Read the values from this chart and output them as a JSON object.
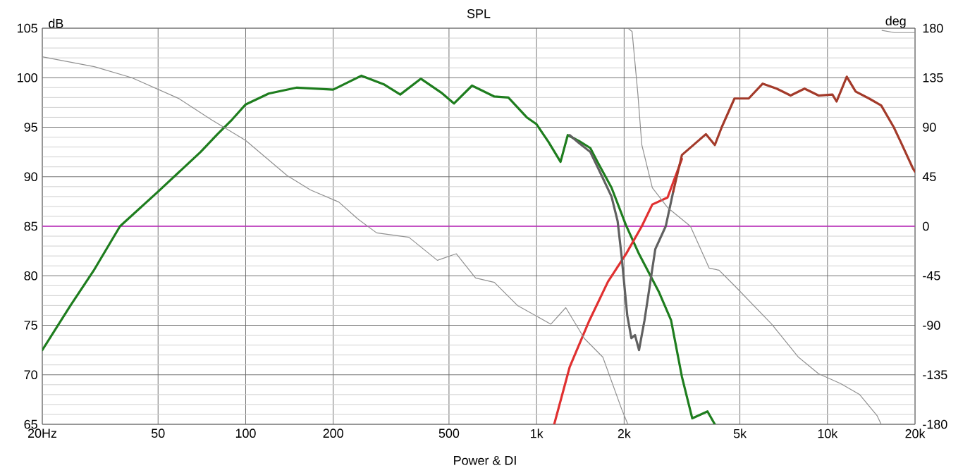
{
  "chart_data": {
    "type": "line",
    "title": "SPL",
    "ylabel": "dB",
    "y2label": "deg",
    "annotations": [
      "Power & DI"
    ],
    "xlim": [
      20,
      20000
    ],
    "ylim": [
      65,
      105
    ],
    "y2lim": [
      -180,
      180
    ],
    "log": "x",
    "grid": true,
    "xticks": [
      {
        "value": 20,
        "label": "20Hz"
      },
      50,
      100,
      200,
      500,
      {
        "value": 1000,
        "label": "1k"
      },
      {
        "value": 2000,
        "label": "2k"
      },
      {
        "value": 5000,
        "label": "5k"
      },
      {
        "value": 10000,
        "label": "10k"
      },
      {
        "value": 20000,
        "label": "20k"
      }
    ],
    "yticks": [
      65,
      70,
      75,
      80,
      85,
      90,
      95,
      100,
      105
    ],
    "y2ticks": [
      -180,
      -135,
      -90,
      -45,
      0,
      45,
      90,
      135,
      180
    ],
    "ref_lines": [
      {
        "axis": "y",
        "value": 85,
        "color": "#c832c8"
      }
    ],
    "series": [
      {
        "color": "#909090",
        "axis": "y2",
        "x": [
          20,
          30.2,
          40.6,
          59,
          76,
          100,
          139,
          167,
          209,
          242,
          282,
          364,
          456,
          530,
          617,
          716,
          860,
          1120,
          1260,
          1460,
          1690,
          1960,
          2060,
          2061,
          2062,
          2130,
          2230,
          2300,
          2500,
          2820,
          3380,
          3920,
          4240,
          4790,
          6430,
          7950,
          9320,
          11100,
          12900,
          14800,
          15300,
          15301,
          15400,
          17000,
          20000
        ],
        "values": [
          154,
          145,
          135,
          116,
          97,
          78,
          46,
          33,
          22,
          7,
          -6,
          -10,
          -31,
          -25,
          -47,
          -51,
          -72,
          -89,
          -74,
          -102,
          -119,
          -166,
          -180,
          null,
          180,
          177,
          120,
          74,
          35,
          17,
          0,
          -38,
          -40,
          -54,
          -89,
          -119,
          -134,
          -143,
          -153,
          -172,
          -180,
          null,
          178,
          176,
          176
        ]
      },
      {
        "color": "#1e7d1e",
        "x": [
          20,
          25,
          30,
          37,
          50,
          70,
          80,
          90,
          100,
          120,
          150,
          200,
          250,
          300,
          340,
          400,
          470,
          520,
          600,
          716,
          800,
          925,
          1000,
          1100,
          1209,
          1280,
          1400,
          1530,
          1620,
          1810,
          2030,
          2250,
          2630,
          2900,
          3160,
          3430,
          3870,
          4100
        ],
        "values": [
          72.5,
          77,
          80.5,
          85,
          88.5,
          92.5,
          94.3,
          95.8,
          97.3,
          98.4,
          99,
          98.8,
          100.2,
          99.3,
          98.3,
          99.9,
          98.5,
          97.4,
          99.2,
          98.1,
          98,
          96,
          95.3,
          93.5,
          91.5,
          94.2,
          93.6,
          92.9,
          91.5,
          88.9,
          85.1,
          82.2,
          78.4,
          75.5,
          69.8,
          65.6,
          66.3,
          65
        ]
      },
      {
        "color": "#e03030",
        "x": [
          1150,
          1300,
          1520,
          1760,
          2030,
          2300,
          2500,
          2820,
          3160
        ],
        "values": [
          65,
          70.8,
          75.5,
          79.4,
          82.2,
          85,
          87.2,
          87.9,
          91.8
        ]
      },
      {
        "color": "#606060",
        "x": [
          1300,
          1400,
          1530,
          1620,
          1810,
          1900,
          1960,
          2050,
          2118,
          2180,
          2250,
          2350,
          2560,
          2780,
          2950
        ],
        "values": [
          94.2,
          93.4,
          92.5,
          91,
          88,
          85.5,
          82,
          76,
          73.7,
          74,
          72.5,
          75.5,
          82.7,
          85,
          88.5
        ]
      },
      {
        "color": "#a33a2a",
        "x": [
          2950,
          3160,
          3820,
          4100,
          4330,
          4790,
          5360,
          5990,
          6690,
          7470,
          8340,
          9320,
          10400,
          10750,
          11650,
          12500,
          13900,
          15300,
          16900,
          17800,
          19700,
          20000
        ],
        "values": [
          88.5,
          92.2,
          94.3,
          93.2,
          95,
          97.9,
          97.9,
          99.4,
          98.9,
          98.2,
          98.9,
          98.2,
          98.3,
          97.6,
          100.1,
          98.6,
          97.9,
          97.2,
          95,
          93.6,
          90.8,
          90.5
        ]
      }
    ]
  }
}
